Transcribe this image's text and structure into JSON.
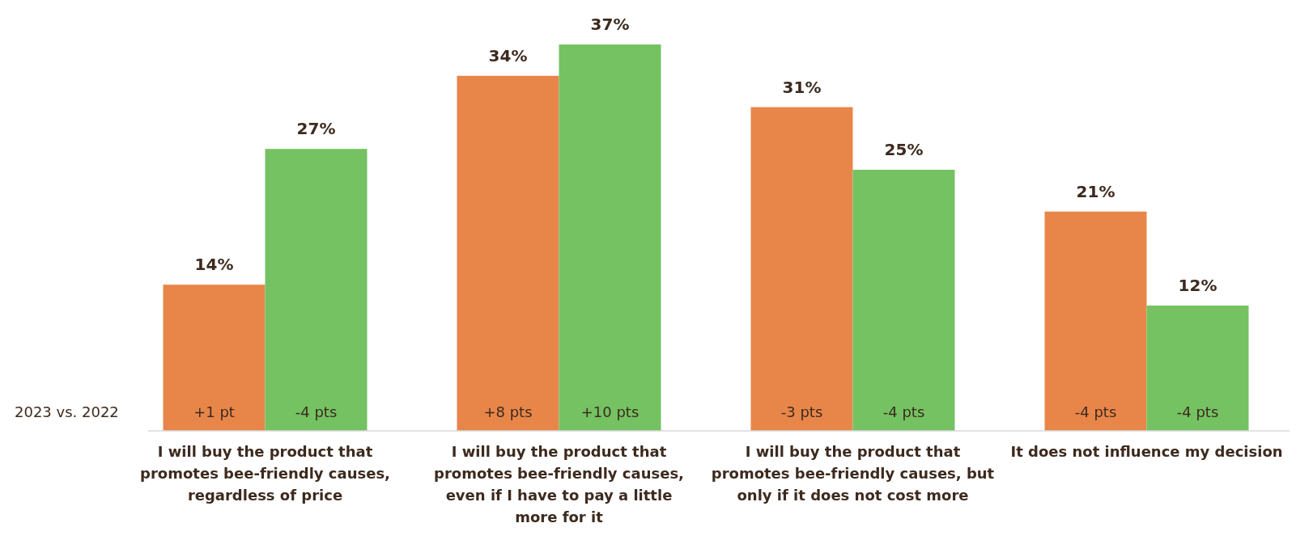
{
  "chart_data": {
    "type": "bar",
    "categories": [
      "I will buy the product that promotes bee-friendly causes, regardless of price",
      "I will buy the product that promotes bee-friendly causes, even if I have to pay a little more for it",
      "I will buy the product that promotes bee-friendly causes, but only if it does not cost more",
      "It does not influence my decision"
    ],
    "series": [
      {
        "color": "#e8864a",
        "values": [
          14,
          34,
          31,
          21
        ],
        "value_labels": [
          "14%",
          "34%",
          "31%",
          "21%"
        ]
      },
      {
        "color": "#74c262",
        "values": [
          27,
          37,
          25,
          12
        ],
        "value_labels": [
          "27%",
          "37%",
          "25%",
          "12%"
        ]
      }
    ],
    "annotations": [
      "2023 vs. 2022",
      "+1 pt",
      "-4 pts",
      "+8 pts",
      "+10 pts",
      "-3 pts",
      "-4 pts",
      "-4 pts",
      "-4 pts"
    ]
  }
}
